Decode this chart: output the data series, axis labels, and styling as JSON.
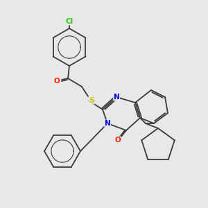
{
  "background_color": "#e8e8e8",
  "bond_color": "#3a3a3a",
  "atom_colors": {
    "Cl": "#22cc00",
    "O": "#ff2200",
    "S": "#cccc00",
    "N": "#0000ee",
    "C": "#3a3a3a"
  },
  "figsize": [
    3.0,
    3.0
  ],
  "dpi": 100
}
